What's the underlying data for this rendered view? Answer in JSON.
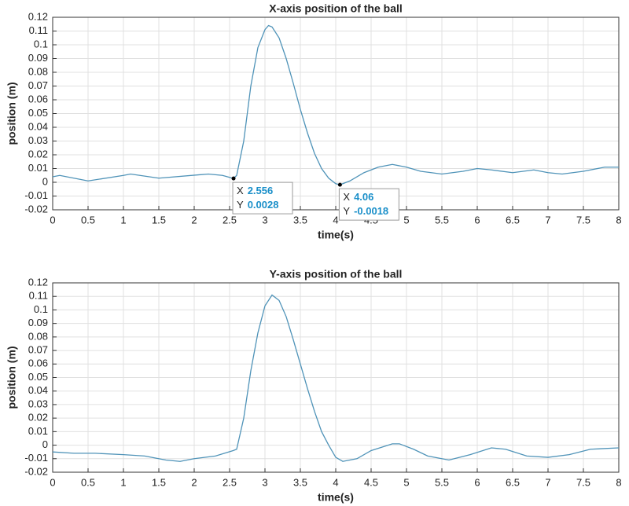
{
  "chart_data": [
    {
      "type": "line",
      "title": "X-axis position of the ball",
      "xlabel": "time(s)",
      "ylabel": "position (m)",
      "color": "#4f93b8",
      "grid": true,
      "x": [
        0,
        0.1,
        0.5,
        1.0,
        1.1,
        1.5,
        2.2,
        2.4,
        2.556,
        2.6,
        2.7,
        2.8,
        2.9,
        3.0,
        3.05,
        3.1,
        3.2,
        3.3,
        3.4,
        3.5,
        3.6,
        3.7,
        3.8,
        3.9,
        4.0,
        4.06,
        4.2,
        4.4,
        4.6,
        4.8,
        5.0,
        5.2,
        5.5,
        5.8,
        6.0,
        6.2,
        6.5,
        6.8,
        7.0,
        7.2,
        7.5,
        7.8,
        8.0
      ],
      "values": [
        0.004,
        0.005,
        0.001,
        0.005,
        0.006,
        0.003,
        0.006,
        0.005,
        0.0028,
        0.005,
        0.03,
        0.07,
        0.098,
        0.111,
        0.114,
        0.113,
        0.105,
        0.09,
        0.072,
        0.053,
        0.036,
        0.021,
        0.01,
        0.003,
        -0.001,
        -0.0018,
        0.001,
        0.007,
        0.011,
        0.013,
        0.011,
        0.008,
        0.006,
        0.008,
        0.01,
        0.009,
        0.007,
        0.009,
        0.007,
        0.006,
        0.008,
        0.011,
        0.011
      ],
      "xlim": [
        0,
        8
      ],
      "xticks": [
        0,
        0.5,
        1,
        1.5,
        2,
        2.5,
        3,
        3.5,
        4,
        4.5,
        5,
        5.5,
        6,
        6.5,
        7,
        7.5,
        8
      ],
      "ylim": [
        -0.02,
        0.12
      ],
      "yticks": [
        -0.02,
        -0.01,
        0,
        0.01,
        0.02,
        0.03,
        0.04,
        0.05,
        0.06,
        0.07,
        0.08,
        0.09,
        0.1,
        0.11,
        0.12
      ],
      "datatips": [
        {
          "x_label": "X",
          "x": 2.556,
          "y_label": "Y",
          "y": 0.0028
        },
        {
          "x_label": "X",
          "x": 4.06,
          "y_label": "Y",
          "y": -0.0018
        }
      ]
    },
    {
      "type": "line",
      "title": "Y-axis position of the ball",
      "xlabel": "time(s)",
      "ylabel": "position (m)",
      "color": "#4f93b8",
      "grid": true,
      "x": [
        0,
        0.3,
        0.6,
        1.0,
        1.3,
        1.6,
        1.8,
        2.0,
        2.3,
        2.55,
        2.6,
        2.7,
        2.8,
        2.9,
        3.0,
        3.1,
        3.2,
        3.3,
        3.4,
        3.5,
        3.6,
        3.7,
        3.8,
        3.9,
        4.0,
        4.1,
        4.3,
        4.5,
        4.8,
        4.9,
        5.1,
        5.3,
        5.6,
        5.9,
        6.2,
        6.4,
        6.7,
        7.0,
        7.3,
        7.6,
        8.0
      ],
      "values": [
        -0.005,
        -0.006,
        -0.006,
        -0.007,
        -0.008,
        -0.011,
        -0.012,
        -0.01,
        -0.008,
        -0.004,
        -0.003,
        0.02,
        0.055,
        0.083,
        0.103,
        0.111,
        0.107,
        0.095,
        0.078,
        0.06,
        0.042,
        0.025,
        0.01,
        0.0,
        -0.009,
        -0.012,
        -0.01,
        -0.004,
        0.001,
        0.001,
        -0.003,
        -0.008,
        -0.011,
        -0.007,
        -0.002,
        -0.003,
        -0.008,
        -0.009,
        -0.007,
        -0.003,
        -0.002
      ],
      "xlim": [
        0,
        8
      ],
      "xticks": [
        0,
        0.5,
        1,
        1.5,
        2,
        2.5,
        3,
        3.5,
        4,
        4.5,
        5,
        5.5,
        6,
        6.5,
        7,
        7.5,
        8
      ],
      "ylim": [
        -0.02,
        0.12
      ],
      "yticks": [
        -0.02,
        -0.01,
        0,
        0.01,
        0.02,
        0.03,
        0.04,
        0.05,
        0.06,
        0.07,
        0.08,
        0.09,
        0.1,
        0.11,
        0.12
      ]
    }
  ]
}
